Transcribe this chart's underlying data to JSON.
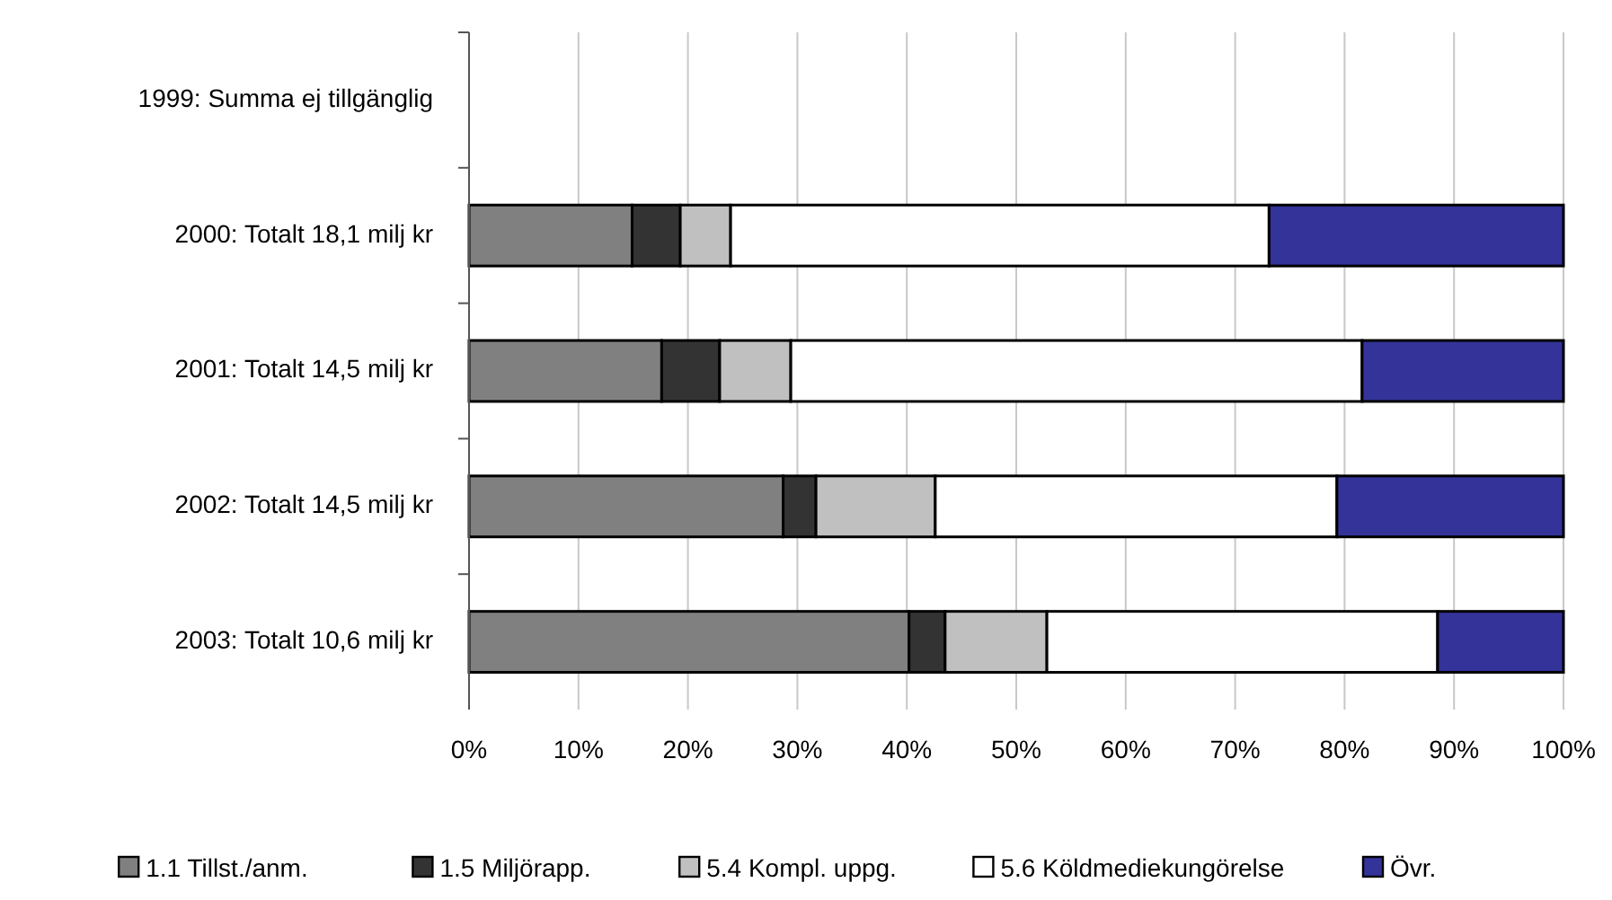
{
  "chart_data": {
    "type": "bar",
    "orientation": "horizontal",
    "stacked": true,
    "categories": [
      "1999: Summa ej tillgänglig",
      "2000: Totalt 18,1 milj kr",
      "2001: Totalt 14,5 milj kr",
      "2002: Totalt 14,5 milj kr",
      "2003: Totalt 10,6 milj kr"
    ],
    "series": [
      {
        "name": "1.1 Tillst./anm.",
        "color": "#808080",
        "values": [
          null,
          14.9,
          17.6,
          28.7,
          40.2
        ]
      },
      {
        "name": "1.5 Miljörapp.",
        "color": "#333333",
        "values": [
          null,
          4.4,
          5.3,
          3.0,
          3.3
        ]
      },
      {
        "name": "5.4 Kompl. uppg.",
        "color": "#c0c0c0",
        "values": [
          null,
          4.6,
          6.5,
          10.9,
          9.3
        ]
      },
      {
        "name": "5.6 Köldmediekungörelse",
        "color": "#ffffff",
        "values": [
          null,
          49.2,
          52.2,
          36.7,
          35.7
        ]
      },
      {
        "name": "Övr.",
        "color": "#333399",
        "values": [
          null,
          26.9,
          18.4,
          20.7,
          11.5
        ]
      }
    ],
    "xlim": [
      0,
      100
    ],
    "xticks": [
      {
        "value": 0,
        "label": "0%"
      },
      {
        "value": 10,
        "label": "10%"
      },
      {
        "value": 20,
        "label": "20%"
      },
      {
        "value": 30,
        "label": "30%"
      },
      {
        "value": 40,
        "label": "40%"
      },
      {
        "value": 50,
        "label": "50%"
      },
      {
        "value": 60,
        "label": "60%"
      },
      {
        "value": 70,
        "label": "70%"
      },
      {
        "value": 80,
        "label": "80%"
      },
      {
        "value": 90,
        "label": "90%"
      },
      {
        "value": 100,
        "label": "100%"
      }
    ],
    "grid": "x",
    "legend": "bottom"
  }
}
